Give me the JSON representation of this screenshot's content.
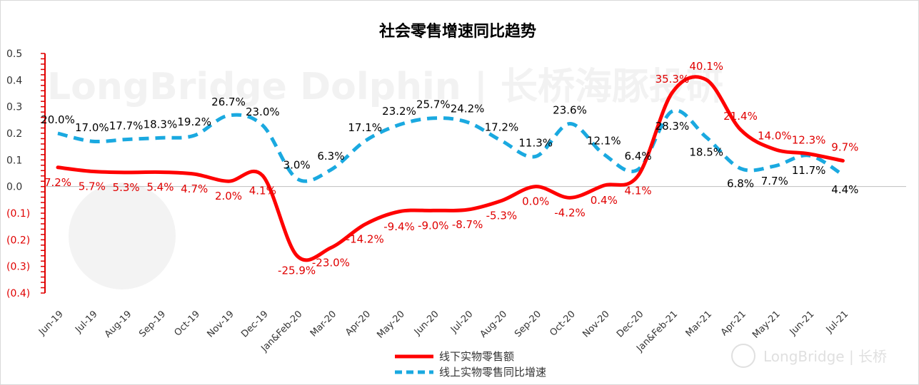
{
  "watermark": {
    "text": "LongBridge Dolphin | 长桥海豚投研",
    "logo_text": "LongBridge | 长桥"
  },
  "chart_data": {
    "type": "line",
    "title": "社会零售增速同比趋势",
    "categories": [
      "Jun-19",
      "Jul-19",
      "Aug-19",
      "Sep-19",
      "Oct-19",
      "Nov-19",
      "Dec-19",
      "Jan&Feb-20",
      "Mar-20",
      "Apr-20",
      "May-20",
      "Jun-20",
      "Jul-20",
      "Aug-20",
      "Sep-20",
      "Oct-20",
      "Nov-20",
      "Dec-20",
      "Jan&Feb-21",
      "Mar-21",
      "Apr-21",
      "May-21",
      "Jun-21",
      "Jul-21"
    ],
    "ylim": [
      -0.4,
      0.5
    ],
    "yticks": [
      {
        "value": 0.5,
        "label": "0.5"
      },
      {
        "value": 0.4,
        "label": "0.4"
      },
      {
        "value": 0.3,
        "label": "0.3"
      },
      {
        "value": 0.2,
        "label": "0.2"
      },
      {
        "value": 0.1,
        "label": "0.1"
      },
      {
        "value": 0.0,
        "label": "0.0"
      },
      {
        "value": -0.1,
        "label": "(0.1)"
      },
      {
        "value": -0.2,
        "label": "(0.2)"
      },
      {
        "value": -0.3,
        "label": "(0.3)"
      },
      {
        "value": -0.4,
        "label": "(0.4)"
      }
    ],
    "series": [
      {
        "name": "线下实物零售额",
        "color": "#ff0000",
        "style": "solid",
        "values": [
          0.072,
          0.057,
          0.053,
          0.054,
          0.047,
          0.02,
          0.041,
          -0.259,
          -0.23,
          -0.142,
          -0.094,
          -0.09,
          -0.087,
          -0.053,
          0.0,
          -0.042,
          0.004,
          0.041,
          0.353,
          0.401,
          0.214,
          0.14,
          0.123,
          0.097
        ],
        "labels": [
          "7.2%",
          "5.7%",
          "5.3%",
          "5.4%",
          "4.7%",
          "2.0%",
          "4.1%",
          "-25.9%",
          "-23.0%",
          "-14.2%",
          "-9.4%",
          "-9.0%",
          "-8.7%",
          "-5.3%",
          "0.0%",
          "-4.2%",
          "0.4%",
          "4.1%",
          "35.3%",
          "40.1%",
          "21.4%",
          "14.0%",
          "12.3%",
          "9.7%"
        ]
      },
      {
        "name": "线上实物零售同比增速",
        "color": "#1aa9e0",
        "style": "dashed",
        "values": [
          0.2,
          0.17,
          0.177,
          0.183,
          0.192,
          0.267,
          0.23,
          0.03,
          0.063,
          0.171,
          0.232,
          0.257,
          0.242,
          0.172,
          0.113,
          0.236,
          0.121,
          0.064,
          0.283,
          0.185,
          0.068,
          0.077,
          0.117,
          0.044
        ],
        "labels": [
          "20.0%",
          "17.0%",
          "17.7%",
          "18.3%",
          "19.2%",
          "26.7%",
          "23.0%",
          "3.0%",
          "6.3%",
          "17.1%",
          "23.2%",
          "25.7%",
          "24.2%",
          "17.2%",
          "11.3%",
          "23.6%",
          "12.1%",
          "6.4%",
          "28.3%",
          "18.5%",
          "6.8%",
          "7.7%",
          "11.7%",
          "4.4%"
        ]
      }
    ],
    "legend_position": "bottom",
    "grid": false
  }
}
